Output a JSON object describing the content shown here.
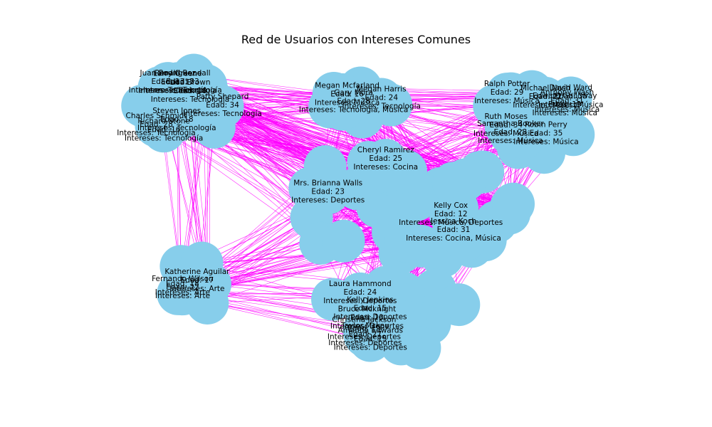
{
  "title": "Red de Usuarios con Intereses Comunes",
  "style": {
    "node_color": "#87CEEB",
    "edge_color": "#FF00FF",
    "background": "#FFFFFF"
  },
  "nodes": [
    {
      "name": "Patty Shepard",
      "edad": "Edad: 34",
      "intereses": "Intereses: Tecnología",
      "group": "tec"
    },
    {
      "name": "Steven Jones",
      "edad": "Edad: 18",
      "intereses": "Intereses: Tecnología",
      "group": "tec"
    },
    {
      "name": "Larry Greene",
      "edad": "Edad: 17",
      "intereses": "Intereses: Tecnología",
      "group": "tec"
    },
    {
      "name": "Richard Stone",
      "edad": "Edad: 16",
      "intereses": "Intereses: Tecnología",
      "group": "tec"
    },
    {
      "name": "Ronald Randall",
      "edad": "Edad: 33",
      "intereses": "Intereses: Tecnología",
      "group": "tec"
    },
    {
      "name": "Juan Rodriguez",
      "edad": "Edad: 13",
      "intereses": "Intereses: Tecnología",
      "group": "tec"
    },
    {
      "name": "Lisa Brown",
      "edad": "Edad: 16",
      "intereses": "Intereses: Tecnología",
      "group": "tec"
    },
    {
      "name": "Charles Schmidt",
      "edad": "Edad: 28",
      "intereses": "Intereses: Tecnología",
      "group": "tec"
    },
    {
      "name": "Gary Mora",
      "edad": "Edad: 28",
      "intereses": "Intereses: Tecnología, Música",
      "group": "top"
    },
    {
      "name": "Megan Mcfarland",
      "edad": "Edad: 16",
      "intereses": "Intereses: Música",
      "group": "top"
    },
    {
      "name": "Megan Harris",
      "edad": "Edad: 24",
      "intereses": "Intereses: Tecnología",
      "group": "top"
    },
    {
      "name": "Jessica Koch",
      "edad": "Edad: 31",
      "intereses": "Intereses: Cocina, Música",
      "group": "mid"
    },
    {
      "name": "Anthony Wash",
      "edad": "Edad: 31",
      "intereses": "Intereses: Música",
      "group": "mus"
    },
    {
      "name": "Ralph Potter",
      "edad": "Edad: 29",
      "intereses": "Intereses: Música",
      "group": "mus"
    },
    {
      "name": "David Ward",
      "edad": "Edad: 35",
      "intereses": "Intereses: Música",
      "group": "mus"
    },
    {
      "name": "Samantha Booker",
      "edad": "Edad: 28",
      "intereses": "Intereses: Música",
      "group": "mus"
    },
    {
      "name": "Michael Nash",
      "edad": "Edad: 22",
      "intereses": "Intereses: Música",
      "group": "mus"
    },
    {
      "name": "Robin Perry",
      "edad": "Edad: 35",
      "intereses": "Intereses: Música",
      "group": "mus"
    },
    {
      "name": "Ruth Moses",
      "edad": "Edad: 34",
      "intereses": "Intereses: Música",
      "group": "mus"
    },
    {
      "name": "Edward Galloway",
      "edad": "Edad: 19",
      "intereses": "Intereses: Música",
      "group": "mus"
    },
    {
      "name": "Cheryl Ramirez",
      "edad": "Edad: 25",
      "intereses": "Intereses: Cocina",
      "group": "mid"
    },
    {
      "name": "Kelly Cox",
      "edad": "Edad: 12",
      "intereses": "Intereses: Música, Deportes",
      "group": "mid"
    },
    {
      "name": "Mrs. Brianna Walls",
      "edad": "Edad: 23",
      "intereses": "Intereses: Deportes",
      "group": "mid"
    },
    {
      "name": "Fernando Wilson",
      "edad": "Edad: 22",
      "intereses": "Intereses: Arte",
      "group": "arte"
    },
    {
      "name": "Katherine Aguilar",
      "edad": "Edad: 17",
      "intereses": "Intereses: Arte",
      "group": "arte"
    },
    {
      "name": "Edad: 18",
      "edad": "",
      "intereses": "Intereses: Arte",
      "group": "arte"
    },
    {
      "name": "Laura Hammond",
      "edad": "Edad: 24",
      "intereses": "Intereses: Deportes",
      "group": "dep"
    },
    {
      "name": "Bruce Mcknight",
      "edad": "Edad: 13",
      "intereses": "Intereses: Deportes",
      "group": "dep"
    },
    {
      "name": "Christina Jackson",
      "edad": "Edad: 19",
      "intereses": "Intereses: Deportes",
      "group": "dep"
    },
    {
      "name": "Taylor Mckay",
      "edad": "Edad: 27",
      "intereses": "Intereses: Deportes",
      "group": "dep"
    },
    {
      "name": "Amanda Edwards",
      "edad": "Edad: 15",
      "intereses": "Intereses: Deportes",
      "group": "dep"
    },
    {
      "name": "Kelly Jenkins",
      "edad": "Edad: 15",
      "intereses": "Intereses: Deportes",
      "group": "dep"
    }
  ]
}
